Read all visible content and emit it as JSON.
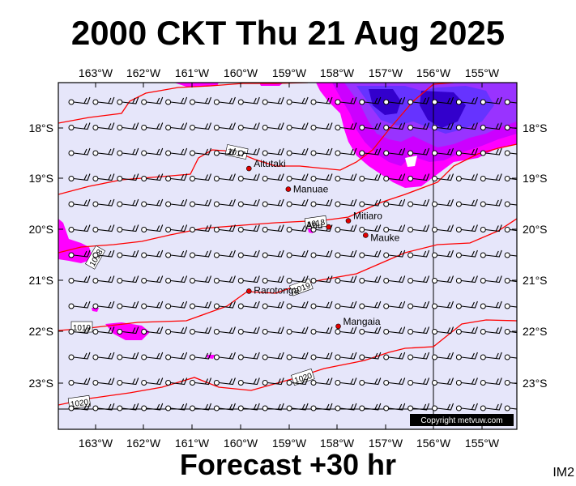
{
  "title": "2000 CKT Thu 21 Aug 2025",
  "subtitle": "Forecast +30 hr",
  "corner_label": "IM2",
  "copyright": "Copyright metvuw.com",
  "colors": {
    "land_bg": "#e6e6fa",
    "isobar": "#ff0000",
    "rain_light": "#ff00ff",
    "rain_mid": "#cc00ff",
    "rain_heavy": "#6633ff",
    "rain_max": "#3300cc"
  },
  "lon_labels": [
    "163°W",
    "162°W",
    "161°W",
    "160°W",
    "159°W",
    "158°W",
    "157°W",
    "156°W",
    "155°W"
  ],
  "lat_labels": [
    "18°S",
    "19°S",
    "20°S",
    "21°S",
    "22°S",
    "23°S"
  ],
  "places": [
    {
      "name": "Aitutaki",
      "lon": -159.78,
      "lat": -18.86
    },
    {
      "name": "Manuae",
      "lon": -158.96,
      "lat": -19.26
    },
    {
      "name": "Atiu",
      "lon": -158.12,
      "lat": -19.99
    },
    {
      "name": "Mitiaro",
      "lon": -157.71,
      "lat": -19.87
    },
    {
      "name": "Mauke",
      "lon": -157.35,
      "lat": -20.15
    },
    {
      "name": "Rarotonga",
      "lon": -159.78,
      "lat": -21.23
    },
    {
      "name": "Mangaia",
      "lon": -157.92,
      "lat": -21.91
    }
  ],
  "isobar_labels": [
    "1017",
    "1018",
    "1018",
    "1019",
    "1019",
    "1020",
    "1020"
  ],
  "map": {
    "lon_min": -163.75,
    "lon_max": -154.2,
    "lat_max": -17.2,
    "lat_min": -23.9
  }
}
